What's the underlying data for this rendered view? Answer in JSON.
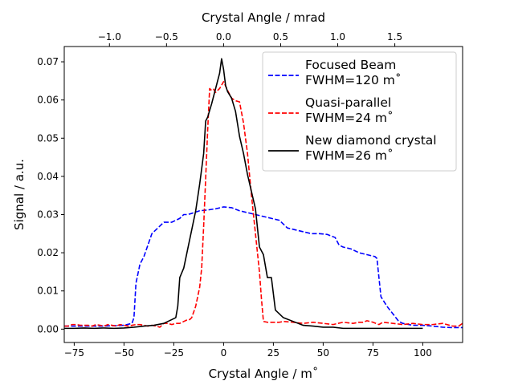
{
  "chart_data": {
    "type": "line",
    "xlabel": "Crystal Angle / m˚",
    "ylabel": "Signal / a.u.",
    "top_xlabel": "Crystal Angle / mrad",
    "xlim": [
      -80,
      120
    ],
    "ylim": [
      -0.0035,
      0.074
    ],
    "top_xlim": [
      -1.396,
      2.094
    ],
    "xticks": [
      -75,
      -50,
      -25,
      0,
      25,
      50,
      75,
      100
    ],
    "xtick_labels": [
      "−75",
      "−50",
      "−25",
      "0",
      "25",
      "50",
      "75",
      "100"
    ],
    "yticks": [
      0.0,
      0.01,
      0.02,
      0.03,
      0.04,
      0.05,
      0.06,
      0.07
    ],
    "ytick_labels": [
      "0.00",
      "0.01",
      "0.02",
      "0.03",
      "0.04",
      "0.05",
      "0.06",
      "0.07"
    ],
    "top_xticks": [
      -1.0,
      -0.5,
      0.0,
      0.5,
      1.0,
      1.5
    ],
    "top_xtick_labels": [
      "−1.0",
      "−0.5",
      "0.0",
      "0.5",
      "1.0",
      "1.5"
    ],
    "legend_position": "top-right",
    "series": [
      {
        "name": "Focused Beam",
        "legend_line1": "Focused Beam",
        "legend_line2": "FWHM=120 m˚",
        "color": "#0000ff",
        "dash": "dashed",
        "x": [
          -80,
          -70,
          -60,
          -50,
          -46,
          -45,
          -44,
          -42,
          -40,
          -38,
          -36,
          -34,
          -32,
          -30,
          -28,
          -26,
          -24,
          -22,
          -20,
          -18,
          -16,
          -12,
          -8,
          -4,
          0,
          4,
          8,
          12,
          16,
          20,
          24,
          28,
          32,
          36,
          40,
          44,
          48,
          52,
          56,
          58,
          60,
          64,
          68,
          72,
          76,
          77,
          79,
          82,
          85,
          88,
          90,
          95,
          100,
          105,
          110,
          115,
          120
        ],
        "y": [
          0.0008,
          0.0008,
          0.0008,
          0.001,
          0.0015,
          0.003,
          0.012,
          0.017,
          0.019,
          0.022,
          0.025,
          0.026,
          0.027,
          0.028,
          0.028,
          0.028,
          0.0285,
          0.029,
          0.03,
          0.03,
          0.0303,
          0.031,
          0.0312,
          0.0315,
          0.032,
          0.0318,
          0.031,
          0.0305,
          0.03,
          0.0295,
          0.029,
          0.0285,
          0.0265,
          0.026,
          0.0255,
          0.025,
          0.025,
          0.0248,
          0.024,
          0.022,
          0.0215,
          0.021,
          0.02,
          0.0195,
          0.019,
          0.0185,
          0.0085,
          0.006,
          0.004,
          0.002,
          0.0015,
          0.001,
          0.001,
          0.0008,
          0.0005,
          0.0004,
          0.0004
        ]
      },
      {
        "name": "Quasi-parallel",
        "legend_line1": "Quasi-parallel",
        "legend_line2": "FWHM=24 m˚",
        "color": "#ff0000",
        "dash": "dashed",
        "x": [
          -80,
          -78,
          -76,
          -74,
          -72,
          -70,
          -68,
          -66,
          -64,
          -62,
          -60,
          -58,
          -56,
          -54,
          -52,
          -50,
          -48,
          -46,
          -44,
          -42,
          -40,
          -38,
          -36,
          -34,
          -32,
          -30,
          -28,
          -26,
          -24,
          -22,
          -20,
          -18,
          -17,
          -16,
          -14,
          -12,
          -11,
          -10,
          -8,
          -7,
          -6,
          -5,
          -4,
          -2,
          0,
          2,
          4,
          6,
          8,
          10,
          12,
          14,
          16,
          17,
          18,
          19,
          20,
          22,
          25,
          28,
          30,
          35,
          40,
          45,
          50,
          55,
          60,
          65,
          68,
          70,
          72,
          75,
          78,
          80,
          85,
          90,
          95,
          100,
          105,
          110,
          115,
          118,
          120
        ],
        "y": [
          0.0008,
          0.0008,
          0.0012,
          0.0012,
          0.001,
          0.001,
          0.001,
          0.0008,
          0.0012,
          0.001,
          0.0008,
          0.0012,
          0.001,
          0.0008,
          0.0012,
          0.001,
          0.0008,
          0.001,
          0.0012,
          0.0012,
          0.001,
          0.0008,
          0.001,
          0.0008,
          0.0005,
          0.0015,
          0.0015,
          0.0012,
          0.0015,
          0.0015,
          0.002,
          0.0025,
          0.0025,
          0.003,
          0.006,
          0.011,
          0.016,
          0.027,
          0.052,
          0.063,
          0.0625,
          0.0628,
          0.062,
          0.063,
          0.0648,
          0.0625,
          0.0605,
          0.0598,
          0.0595,
          0.054,
          0.046,
          0.035,
          0.025,
          0.02,
          0.015,
          0.008,
          0.002,
          0.0018,
          0.0018,
          0.0018,
          0.002,
          0.0018,
          0.0015,
          0.0018,
          0.0015,
          0.0012,
          0.0018,
          0.0015,
          0.0018,
          0.0018,
          0.0022,
          0.0018,
          0.0012,
          0.0018,
          0.0015,
          0.0012,
          0.0015,
          0.0012,
          0.0012,
          0.0015,
          0.0008,
          0.0008,
          0.0015
        ]
      },
      {
        "name": "New diamond crystal",
        "legend_line1": "New diamond crystal",
        "legend_line2": "FWHM=26 m˚",
        "color": "#000000",
        "dash": "solid",
        "x": [
          -80,
          -75,
          -70,
          -65,
          -60,
          -55,
          -50,
          -45,
          -40,
          -35,
          -30,
          -28,
          -26,
          -24,
          -23,
          -22,
          -20,
          -18,
          -16,
          -14,
          -12,
          -10,
          -9,
          -8,
          -6,
          -4,
          -2,
          -1,
          0,
          1,
          2,
          4,
          6,
          8,
          10,
          12,
          14,
          16,
          18,
          20,
          22,
          24,
          26,
          30,
          35,
          40,
          45,
          50,
          55,
          60,
          65,
          70,
          75,
          80,
          90,
          100
        ],
        "y": [
          0.0002,
          0.0002,
          0.0003,
          0.0002,
          0.0003,
          0.0002,
          0.0003,
          0.0005,
          0.0008,
          0.001,
          0.0015,
          0.002,
          0.0025,
          0.003,
          0.006,
          0.0135,
          0.016,
          0.021,
          0.026,
          0.031,
          0.038,
          0.046,
          0.0545,
          0.0555,
          0.059,
          0.063,
          0.067,
          0.0708,
          0.068,
          0.0638,
          0.0622,
          0.0605,
          0.057,
          0.0505,
          0.046,
          0.0405,
          0.036,
          0.0315,
          0.0215,
          0.0195,
          0.0135,
          0.0135,
          0.005,
          0.003,
          0.002,
          0.001,
          0.0008,
          0.0005,
          0.0005,
          0.0002,
          0.0002,
          0.0002,
          0.0002,
          0.0002,
          0.0002,
          0.0002
        ]
      }
    ]
  }
}
